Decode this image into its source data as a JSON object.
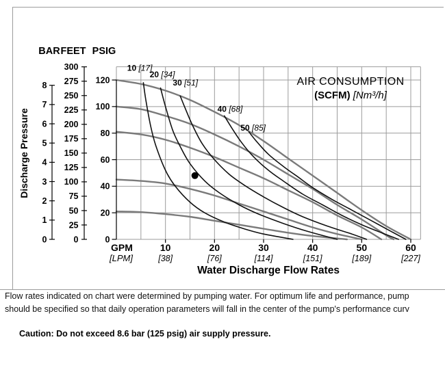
{
  "notes": {
    "line1": "Flow rates indicated on chart were determined by pumping water. For optimum life and performance, pump",
    "line2": "should be specified so that daily operation parameters will fall in the center of the pump's performance curv",
    "caution": "Caution: Do not exceed 8.6 bar (125 psig) air supply pressure."
  },
  "colors": {
    "performance_curve": "#7a7a7a",
    "air_curve": "#111111",
    "grid": "#9b9b9b",
    "axis": "#000000",
    "text": "#000000",
    "operating_point": "#000000"
  },
  "chart_data": {
    "type": "line",
    "title": "AIR CONSUMPTION",
    "title_unit_bold": "(SCFM)",
    "title_unit_italic": "[Nm³/h]",
    "ylabel": "Discharge Pressure",
    "xlabel": "Water Discharge Flow Rates",
    "grid": true,
    "legend": "none",
    "x_axis": {
      "unit_primary": "GPM",
      "unit_secondary": "[LPM]",
      "range_gpm": [
        0,
        62
      ],
      "gridline_step_gpm": 5,
      "ticks": [
        {
          "gpm": 10,
          "lpm": "[38]"
        },
        {
          "gpm": 20,
          "lpm": "[76]"
        },
        {
          "gpm": 30,
          "lpm": "[114]"
        },
        {
          "gpm": 40,
          "lpm": "[151]"
        },
        {
          "gpm": 50,
          "lpm": "[189]"
        },
        {
          "gpm": 60,
          "lpm": "[227]"
        }
      ]
    },
    "y_axis": {
      "range_psi": [
        0,
        130
      ],
      "gridline_step_psi": 20,
      "scales": [
        {
          "name": "BAR",
          "psi_per_unit": 14.5038,
          "ticks": [
            0,
            1,
            2,
            3,
            4,
            5,
            6,
            7,
            8
          ]
        },
        {
          "name": "FEET",
          "psi_per_unit": 0.43311,
          "ticks": [
            0,
            25,
            50,
            75,
            100,
            125,
            150,
            175,
            200,
            225,
            250,
            275,
            300
          ]
        },
        {
          "name": "PSIG",
          "psi_per_unit": 1,
          "ticks": [
            0,
            20,
            40,
            60,
            80,
            100,
            120
          ]
        }
      ]
    },
    "performance_curves_psi_vs_gpm": [
      {
        "points": [
          [
            0,
            120
          ],
          [
            5,
            117
          ],
          [
            10,
            112
          ],
          [
            15,
            105
          ],
          [
            20,
            96
          ],
          [
            25,
            86
          ],
          [
            30,
            74
          ],
          [
            35,
            61
          ],
          [
            40,
            48
          ],
          [
            45,
            35
          ],
          [
            50,
            22
          ],
          [
            55,
            10
          ],
          [
            60,
            0
          ]
        ]
      },
      {
        "points": [
          [
            0,
            100
          ],
          [
            5,
            98
          ],
          [
            10,
            93
          ],
          [
            15,
            87
          ],
          [
            20,
            79
          ],
          [
            25,
            70
          ],
          [
            30,
            60
          ],
          [
            35,
            49
          ],
          [
            40,
            38
          ],
          [
            45,
            26
          ],
          [
            50,
            15
          ],
          [
            55,
            3
          ],
          [
            56.5,
            0
          ]
        ]
      },
      {
        "points": [
          [
            0,
            81
          ],
          [
            5,
            79
          ],
          [
            10,
            75
          ],
          [
            15,
            69
          ],
          [
            20,
            62
          ],
          [
            25,
            54
          ],
          [
            30,
            46
          ],
          [
            35,
            37
          ],
          [
            40,
            28
          ],
          [
            45,
            18
          ],
          [
            50,
            9
          ],
          [
            54,
            0
          ]
        ]
      },
      {
        "points": [
          [
            0,
            45
          ],
          [
            5,
            44
          ],
          [
            10,
            42
          ],
          [
            15,
            38
          ],
          [
            20,
            33
          ],
          [
            25,
            27
          ],
          [
            30,
            21
          ],
          [
            35,
            15
          ],
          [
            40,
            9
          ],
          [
            45,
            4
          ],
          [
            50,
            0
          ]
        ]
      },
      {
        "points": [
          [
            0,
            21
          ],
          [
            5,
            20.5
          ],
          [
            10,
            19
          ],
          [
            15,
            17
          ],
          [
            20,
            14
          ],
          [
            25,
            11
          ],
          [
            30,
            8
          ],
          [
            35,
            5
          ],
          [
            40,
            2.5
          ],
          [
            47,
            0
          ]
        ]
      }
    ],
    "air_consumption_curves": [
      {
        "scfm": "10",
        "nm3h": "[17]",
        "label_at_gpm_psi": [
          2.2,
          127
        ],
        "points": [
          [
            5.5,
            118
          ],
          [
            6,
            105
          ],
          [
            7,
            85
          ],
          [
            8,
            71
          ],
          [
            10,
            52
          ],
          [
            12,
            40
          ],
          [
            15,
            28
          ],
          [
            18,
            20
          ],
          [
            22,
            13
          ],
          [
            26,
            8
          ],
          [
            30,
            4
          ],
          [
            36,
            0
          ]
        ]
      },
      {
        "scfm": "20",
        "nm3h": "[34]",
        "label_at_gpm_psi": [
          6.8,
          122
        ],
        "points": [
          [
            9,
            114
          ],
          [
            10,
            100
          ],
          [
            11.5,
            82
          ],
          [
            13,
            70
          ],
          [
            15,
            57
          ],
          [
            18,
            44
          ],
          [
            21,
            35
          ],
          [
            25,
            26
          ],
          [
            29,
            19
          ],
          [
            34,
            12
          ],
          [
            39,
            6
          ],
          [
            45,
            0
          ]
        ]
      },
      {
        "scfm": "30",
        "nm3h": "[51]",
        "label_at_gpm_psi": [
          11.5,
          116
        ],
        "points": [
          [
            13,
            108
          ],
          [
            14,
            99
          ],
          [
            15.5,
            86
          ],
          [
            17.5,
            72
          ],
          [
            20,
            60
          ],
          [
            23,
            49
          ],
          [
            26,
            41
          ],
          [
            30,
            32
          ],
          [
            34,
            24
          ],
          [
            38,
            17
          ],
          [
            43,
            10
          ],
          [
            48,
            4
          ],
          [
            51,
            0
          ]
        ]
      },
      {
        "scfm": "40",
        "nm3h": "[68]",
        "label_at_gpm_psi": [
          20.6,
          96
        ],
        "points": [
          [
            22,
            93
          ],
          [
            23.5,
            84
          ],
          [
            25.5,
            73
          ],
          [
            28,
            62
          ],
          [
            31,
            52
          ],
          [
            34,
            44
          ],
          [
            38,
            34
          ],
          [
            42,
            26
          ],
          [
            46,
            18
          ],
          [
            50,
            11
          ],
          [
            54,
            5
          ],
          [
            57.5,
            0
          ]
        ]
      },
      {
        "scfm": "50",
        "nm3h": "[85]",
        "label_at_gpm_psi": [
          25.3,
          82
        ],
        "points": [
          [
            27,
            81
          ],
          [
            28.5,
            74
          ],
          [
            31,
            64
          ],
          [
            34,
            55
          ],
          [
            37,
            47
          ],
          [
            40,
            39
          ],
          [
            44,
            30
          ],
          [
            48,
            22
          ],
          [
            52,
            14
          ],
          [
            56,
            6
          ],
          [
            59,
            0
          ]
        ]
      }
    ],
    "operating_point": {
      "gpm": 16,
      "psi": 48
    }
  }
}
